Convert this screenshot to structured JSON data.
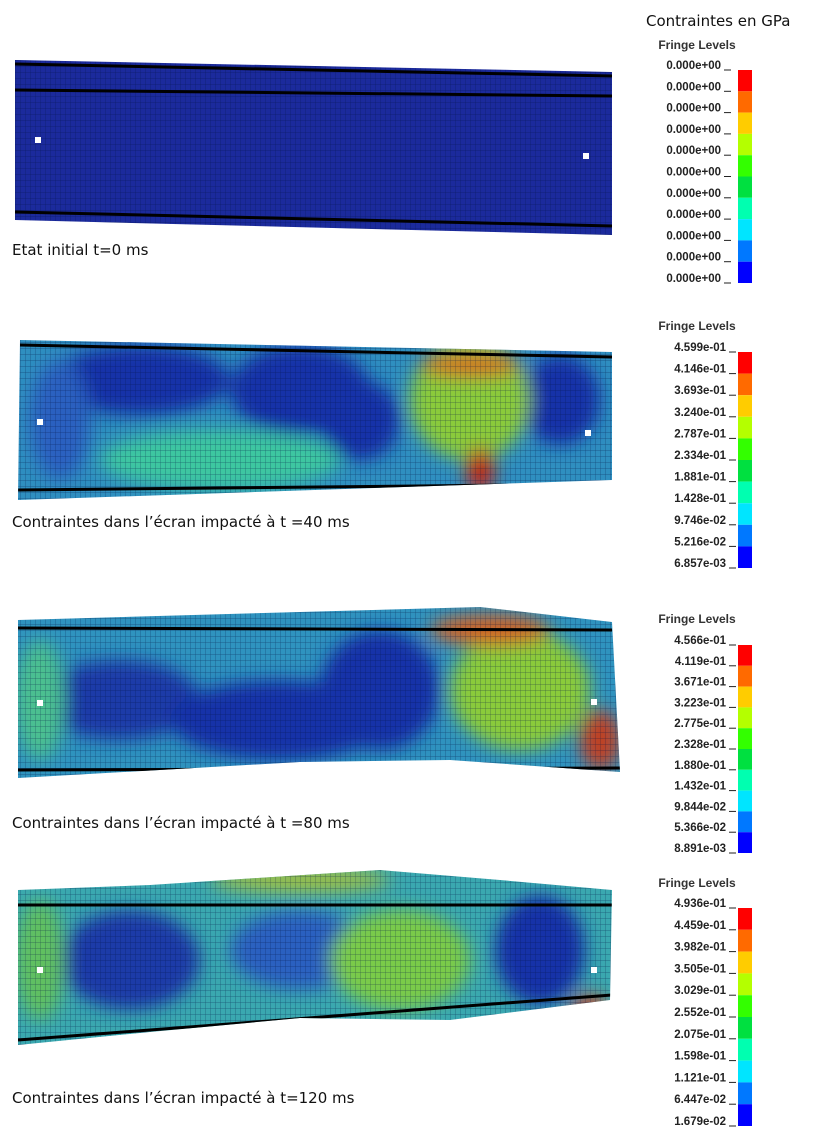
{
  "header": {
    "title": "Contraintes en GPa"
  },
  "panels": [
    {
      "caption": "Etat initial t=0 ms",
      "legend": {
        "title": "Fringe Levels",
        "levels": [
          "0.000e+00",
          "0.000e+00",
          "0.000e+00",
          "0.000e+00",
          "0.000e+00",
          "0.000e+00",
          "0.000e+00",
          "0.000e+00",
          "0.000e+00",
          "0.000e+00",
          "0.000e+00"
        ]
      }
    },
    {
      "caption": "Contraintes dans l’écran impacté à t =40 ms",
      "legend": {
        "title": "Fringe Levels",
        "levels": [
          "4.599e-01",
          "4.146e-01",
          "3.693e-01",
          "3.240e-01",
          "2.787e-01",
          "2.334e-01",
          "1.881e-01",
          "1.428e-01",
          "9.746e-02",
          "5.216e-02",
          "6.857e-03"
        ]
      }
    },
    {
      "caption": "Contraintes dans l’écran impacté à t =80 ms",
      "legend": {
        "title": "Fringe Levels",
        "levels": [
          "4.566e-01",
          "4.119e-01",
          "3.671e-01",
          "3.223e-01",
          "2.775e-01",
          "2.328e-01",
          "1.880e-01",
          "1.432e-01",
          "9.844e-02",
          "5.366e-02",
          "8.891e-03"
        ]
      }
    },
    {
      "caption": "Contraintes dans l’écran impacté à t=120 ms",
      "legend": {
        "title": "Fringe Levels",
        "levels": [
          "4.936e-01",
          "4.459e-01",
          "3.982e-01",
          "3.505e-01",
          "3.029e-01",
          "2.552e-01",
          "2.075e-01",
          "1.598e-01",
          "1.121e-01",
          "6.447e-02",
          "1.679e-02"
        ]
      }
    }
  ]
}
